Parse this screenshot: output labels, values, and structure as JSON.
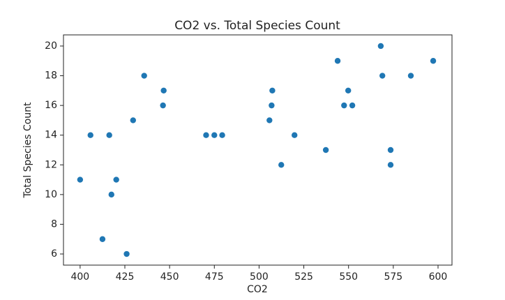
{
  "chart_data": {
    "type": "scatter",
    "title": "CO2 vs. Total Species Count",
    "x_label": "CO2",
    "y_label": "Total Species Count",
    "x": [
      400,
      405.8,
      412.5,
      416.3,
      417.5,
      420.2,
      426,
      429.6,
      435.8,
      446.3,
      446.7,
      470.4,
      475,
      479.4,
      505.8,
      507,
      507.4,
      512.4,
      519.8,
      537.3,
      543.9,
      547.5,
      549.8,
      552.1,
      568,
      568.9,
      573.5,
      573.5,
      584.8,
      597.3
    ],
    "values": [
      11,
      14,
      7,
      14,
      10,
      11,
      6,
      15,
      18,
      16,
      17,
      14,
      14,
      14,
      15,
      16,
      17,
      12,
      14,
      13,
      19,
      16,
      17,
      16,
      20,
      18,
      13,
      12,
      18,
      19
    ],
    "color": "#1f77b4",
    "xlim": [
      390.7,
      607.8
    ],
    "ylim": [
      5.25,
      20.75
    ],
    "xticks": [
      400,
      425,
      450,
      475,
      500,
      525,
      550,
      575,
      600
    ],
    "yticks": [
      6,
      8,
      10,
      12,
      14,
      16,
      18,
      20
    ]
  }
}
